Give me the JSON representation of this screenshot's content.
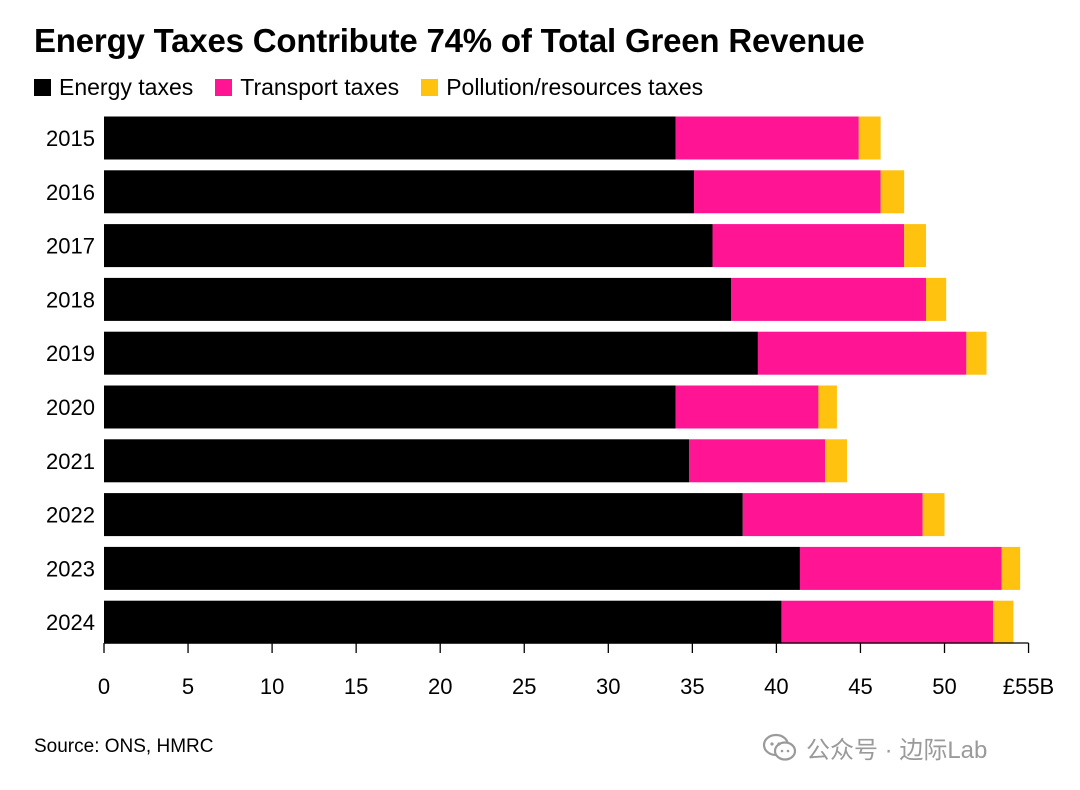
{
  "title": "Energy Taxes Contribute 74% of Total Green Revenue",
  "source": "Source: ONS, HMRC",
  "watermark": "公众号 · 边际Lab",
  "colors": {
    "energy": "#000000",
    "transport": "#ff1493",
    "pollution": "#ffc20e"
  },
  "chart_data": {
    "type": "bar",
    "orientation": "horizontal",
    "stacked": true,
    "categories": [
      "2015",
      "2016",
      "2017",
      "2018",
      "2019",
      "2020",
      "2021",
      "2022",
      "2023",
      "2024"
    ],
    "series": [
      {
        "name": "Energy taxes",
        "color": "#000000",
        "values": [
          34.0,
          35.1,
          36.2,
          37.3,
          38.9,
          34.0,
          34.8,
          38.0,
          41.4,
          40.3
        ]
      },
      {
        "name": "Transport taxes",
        "color": "#ff1493",
        "values": [
          10.9,
          11.1,
          11.4,
          11.6,
          12.4,
          8.5,
          8.1,
          10.7,
          12.0,
          12.6
        ]
      },
      {
        "name": "Pollution/resources taxes",
        "color": "#ffc20e",
        "values": [
          1.3,
          1.4,
          1.3,
          1.2,
          1.2,
          1.1,
          1.3,
          1.3,
          1.1,
          1.2
        ]
      }
    ],
    "xticks": [
      "0",
      "5",
      "10",
      "15",
      "20",
      "25",
      "30",
      "35",
      "40",
      "45",
      "50",
      "£55B"
    ],
    "xlim": [
      0,
      55
    ],
    "legend_position": "top-left",
    "grid": false
  }
}
